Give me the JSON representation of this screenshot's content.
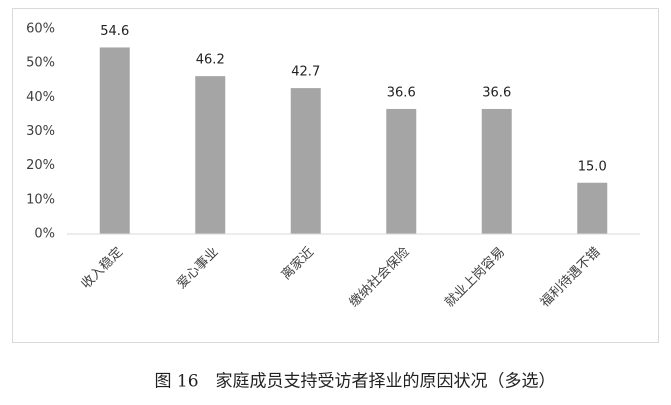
{
  "chart_data": {
    "type": "bar",
    "title": "图 16　家庭成员支持受访者择业的原因状况（多选）",
    "categories": [
      "收入稳定",
      "爱心事业",
      "离家近",
      "缴纳社会保险",
      "就业上岗容易",
      "福利待遇不错"
    ],
    "values": [
      54.6,
      46.2,
      42.7,
      36.6,
      36.6,
      15.0
    ],
    "value_labels": [
      "54.6",
      "46.2",
      "42.7",
      "36.6",
      "36.6",
      "15.0"
    ],
    "color": "#a5a5a5",
    "ylim": [
      0,
      60
    ],
    "yticks": [
      {
        "value": 0,
        "label": "0%"
      },
      {
        "value": 10,
        "label": "10%"
      },
      {
        "value": 20,
        "label": "20%"
      },
      {
        "value": 30,
        "label": "30%"
      },
      {
        "value": 40,
        "label": "40%"
      },
      {
        "value": 50,
        "label": "50%"
      },
      {
        "value": 60,
        "label": "60%"
      }
    ],
    "grid": false
  }
}
